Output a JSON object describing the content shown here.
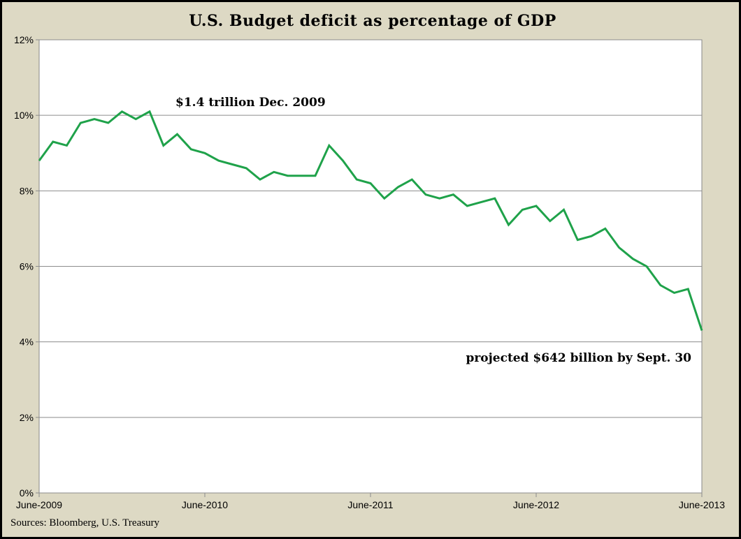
{
  "chart_data": {
    "type": "line",
    "title": "U.S. Budget deficit as percentage of GDP",
    "xlabel": "",
    "ylabel": "",
    "ylim": [
      0,
      12
    ],
    "yticks": [
      "0%",
      "2%",
      "4%",
      "6%",
      "8%",
      "10%",
      "12%"
    ],
    "xticks": [
      "June-2009",
      "June-2010",
      "June-2011",
      "June-2012",
      "June-2013"
    ],
    "grid": true,
    "legend": "none",
    "line_color": "#1fa24a",
    "x": [
      "2009-06",
      "2009-07",
      "2009-08",
      "2009-09",
      "2009-10",
      "2009-11",
      "2009-12",
      "2010-01",
      "2010-02",
      "2010-03",
      "2010-04",
      "2010-05",
      "2010-06",
      "2010-07",
      "2010-08",
      "2010-09",
      "2010-10",
      "2010-11",
      "2010-12",
      "2011-01",
      "2011-02",
      "2011-03",
      "2011-04",
      "2011-05",
      "2011-06",
      "2011-07",
      "2011-08",
      "2011-09",
      "2011-10",
      "2011-11",
      "2011-12",
      "2012-01",
      "2012-02",
      "2012-03",
      "2012-04",
      "2012-05",
      "2012-06",
      "2012-07",
      "2012-08",
      "2012-09",
      "2012-10",
      "2012-11",
      "2012-12",
      "2013-01",
      "2013-02",
      "2013-03",
      "2013-04",
      "2013-05",
      "2013-06"
    ],
    "series": [
      {
        "values": [
          8.8,
          9.3,
          9.2,
          9.8,
          9.9,
          9.8,
          10.1,
          9.9,
          10.1,
          9.2,
          9.5,
          9.1,
          9.0,
          8.8,
          8.7,
          8.6,
          8.3,
          8.5,
          8.4,
          8.4,
          8.4,
          9.2,
          8.8,
          8.3,
          8.2,
          7.8,
          8.1,
          8.3,
          7.9,
          7.8,
          7.9,
          7.6,
          7.7,
          7.8,
          7.1,
          7.5,
          7.6,
          7.2,
          7.5,
          6.7,
          6.8,
          7.0,
          6.5,
          6.2,
          6.0,
          5.5,
          5.3,
          5.4,
          4.3
        ]
      }
    ],
    "annotations": [
      {
        "text": "$1.4 trillion Dec. 2009"
      },
      {
        "text": "projected $642 billion by Sept. 30"
      }
    ],
    "source": "Sources: Bloomberg, U.S. Treasury"
  }
}
